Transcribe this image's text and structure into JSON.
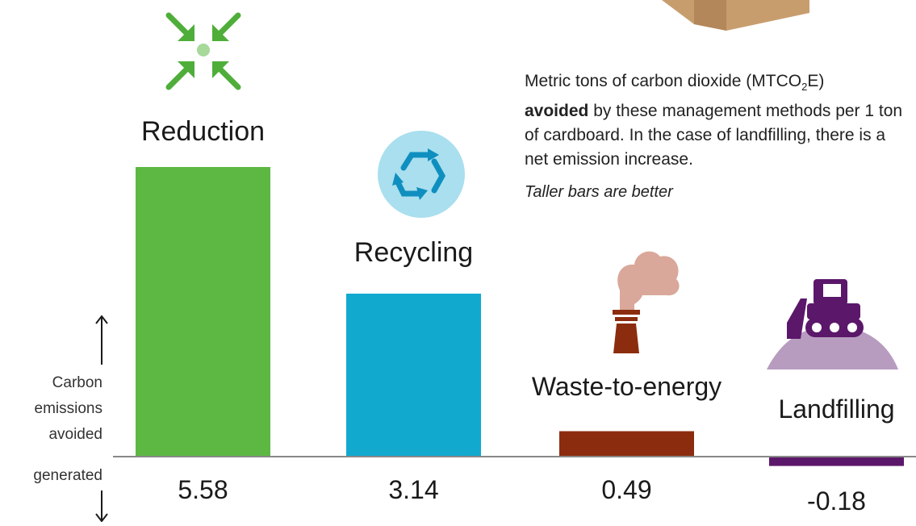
{
  "description": {
    "part1": "Metric tons of carbon dioxide (MTCO",
    "sub": "2",
    "part2": "E)",
    "bold": "avoided",
    "rest": " by these management methods per 1 ton of cardboard. In the case of landfilling, there is a net emission increase."
  },
  "note": "Taller bars are better",
  "axis_labels": {
    "avoided": [
      "Carbon",
      "emissions",
      "avoided"
    ],
    "generated": "generated"
  },
  "colors": {
    "reduction": "#5db843",
    "recycling": "#12a9cf",
    "waste_to_energy": "#8c2c0e",
    "landfilling": "#5b1769",
    "baseline": "#888888",
    "recycle_circle": "#a9dfee",
    "smoke": "#d9a89a",
    "hill": "#b79cc0",
    "box": "#c89d6e"
  },
  "icons": [
    "arrows-in-icon",
    "recycle-icon",
    "factory-smoke-icon",
    "bulldozer-icon",
    "cardboard-box-icon"
  ],
  "chart_data": {
    "type": "bar",
    "categories": [
      "Reduction",
      "Recycling",
      "Waste-to-energy",
      "Landfilling"
    ],
    "values": [
      5.58,
      3.14,
      0.49,
      -0.18
    ],
    "value_labels": [
      "5.58",
      "3.14",
      "0.49",
      "-0.18"
    ],
    "ylim": [
      -0.18,
      5.58
    ],
    "grid": false,
    "legend": "none"
  }
}
